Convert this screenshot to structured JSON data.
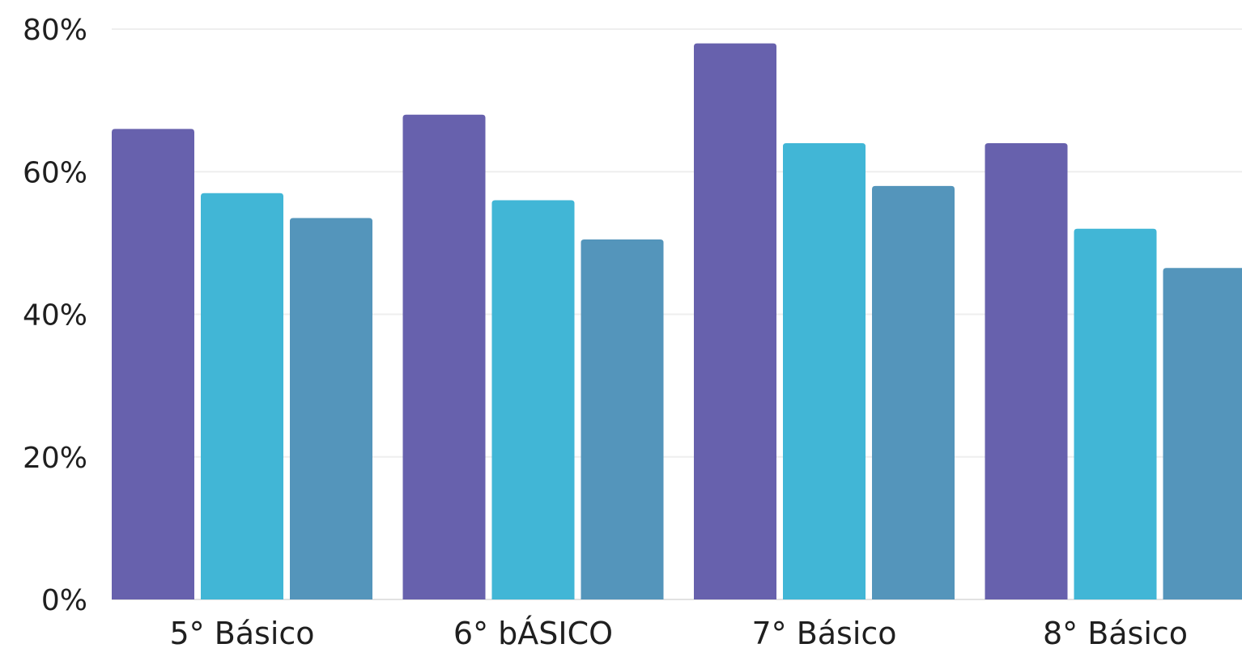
{
  "chart_data": {
    "type": "bar",
    "title": "",
    "xlabel": "",
    "ylabel": "",
    "categories": [
      "5° Básico",
      "6° bÁSICO",
      "7° Básico",
      "8° Básico"
    ],
    "series": [
      {
        "values": [
          66,
          68,
          78,
          64
        ],
        "color": "#6761ad"
      },
      {
        "values": [
          57,
          56,
          64,
          52
        ],
        "color": "#41b6d6"
      },
      {
        "values": [
          53.5,
          50.5,
          58,
          46.5
        ],
        "color": "#5495bb"
      }
    ],
    "ylim": [
      0,
      80
    ],
    "yticks": [
      0,
      20,
      40,
      60,
      80
    ],
    "ytick_labels": [
      "0%",
      "20%",
      "40%",
      "60%",
      "80%"
    ],
    "grid": true,
    "legend": "none"
  }
}
